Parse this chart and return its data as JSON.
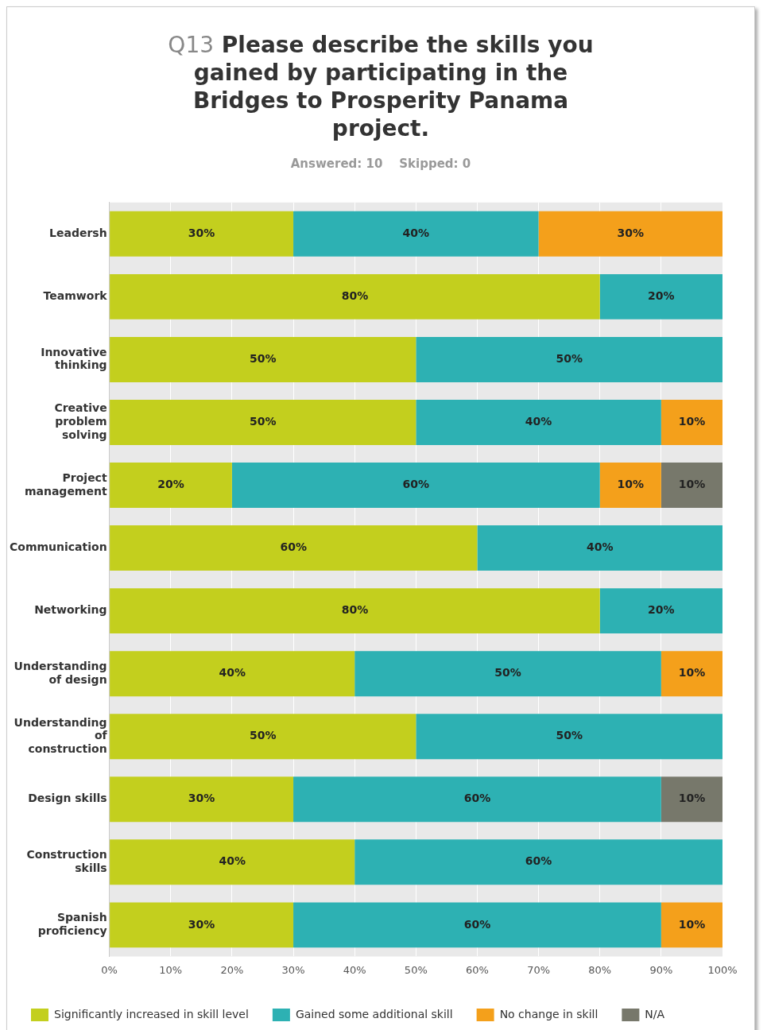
{
  "chart_data": {
    "type": "bar",
    "orientation": "horizontal",
    "stacked": true,
    "title": "Q13 Please describe the skills you gained by participating in the Bridges to Prosperity Panama project.",
    "subtitle": "Answered: 10    Skipped: 0",
    "categories": [
      "Leadersh",
      "Teamwork",
      "Innovative thinking",
      "Creative problem solving",
      "Project management",
      "Communication",
      "Networking",
      "Understanding of design",
      "Understanding of construction",
      "Design skills",
      "Construction skills",
      "Spanish proficiency"
    ],
    "series": [
      {
        "name": "Significantly increased in skill level",
        "color": "#c3cf1e",
        "values": [
          30,
          80,
          50,
          50,
          20,
          60,
          80,
          40,
          50,
          30,
          40,
          30
        ],
        "value_labels": [
          "30%",
          "80%",
          "50%",
          "50%",
          "20%",
          "60%",
          "80%",
          "40%",
          "50%",
          "30%",
          "40%",
          "30%"
        ]
      },
      {
        "name": "Gained some additional skill",
        "color": "#2db1b3",
        "values": [
          40,
          20,
          50,
          40,
          60,
          40,
          20,
          50,
          50,
          60,
          60,
          60
        ],
        "value_labels": [
          "40%",
          "20%",
          "50%",
          "40%",
          "60%",
          "40%",
          "20%",
          "50%",
          "50%",
          "60%",
          "60%",
          "60%"
        ]
      },
      {
        "name": "No change in skill",
        "color": "#f4a01b",
        "values": [
          30,
          null,
          null,
          10,
          10,
          null,
          null,
          10,
          null,
          null,
          null,
          10
        ],
        "value_labels": [
          "30%",
          null,
          null,
          "10%",
          "10%",
          null,
          null,
          "10%",
          null,
          null,
          null,
          "10%"
        ]
      },
      {
        "name": "N/A",
        "color": "#77786b",
        "values": [
          null,
          null,
          null,
          null,
          10,
          null,
          null,
          null,
          null,
          10,
          null,
          null
        ],
        "value_labels": [
          null,
          null,
          null,
          null,
          "10%",
          null,
          null,
          null,
          null,
          "10%",
          null,
          null
        ]
      }
    ],
    "xlim": [
      0,
      100
    ],
    "xticks": [
      {
        "value": 0,
        "label": "0%"
      },
      {
        "value": 10,
        "label": "10%"
      },
      {
        "value": 20,
        "label": "20%"
      },
      {
        "value": 30,
        "label": "30%"
      },
      {
        "value": 40,
        "label": "40%"
      },
      {
        "value": 50,
        "label": "50%"
      },
      {
        "value": 60,
        "label": "60%"
      },
      {
        "value": 70,
        "label": "70%"
      },
      {
        "value": 80,
        "label": "80%"
      },
      {
        "value": 90,
        "label": "90%"
      },
      {
        "value": 100,
        "label": "100%"
      }
    ],
    "grid": "x",
    "legend": "bottom"
  }
}
